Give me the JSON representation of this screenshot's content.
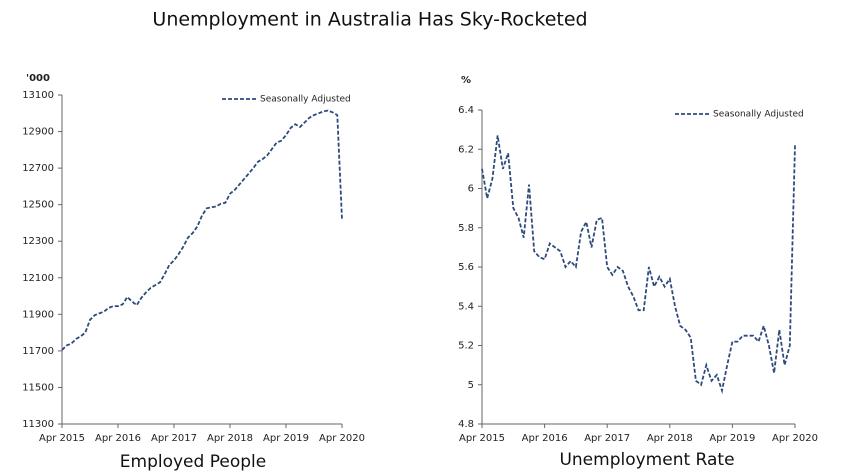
{
  "title": "Unemployment in Australia Has Sky-Rocketed",
  "chart_data": [
    {
      "type": "line",
      "title": "Employed People",
      "ylabel": "'000",
      "x": [
        "2015-04",
        "2015-05",
        "2015-06",
        "2015-07",
        "2015-08",
        "2015-09",
        "2015-10",
        "2015-11",
        "2015-12",
        "2016-01",
        "2016-02",
        "2016-03",
        "2016-04",
        "2016-05",
        "2016-06",
        "2016-07",
        "2016-08",
        "2016-09",
        "2016-10",
        "2016-11",
        "2016-12",
        "2017-01",
        "2017-02",
        "2017-03",
        "2017-04",
        "2017-05",
        "2017-06",
        "2017-07",
        "2017-08",
        "2017-09",
        "2017-10",
        "2017-11",
        "2017-12",
        "2018-01",
        "2018-02",
        "2018-03",
        "2018-04",
        "2018-05",
        "2018-06",
        "2018-07",
        "2018-08",
        "2018-09",
        "2018-10",
        "2018-11",
        "2018-12",
        "2019-01",
        "2019-02",
        "2019-03",
        "2019-04",
        "2019-05",
        "2019-06",
        "2019-07",
        "2019-08",
        "2019-09",
        "2019-10",
        "2019-11",
        "2019-12",
        "2020-01",
        "2020-02",
        "2020-03",
        "2020-04"
      ],
      "series": [
        {
          "name": "Seasonally Adjusted",
          "color": "#2e4a7d",
          "line_style": "dashed",
          "values": [
            11705,
            11730,
            11740,
            11765,
            11780,
            11800,
            11870,
            11895,
            11905,
            11915,
            11935,
            11945,
            11945,
            11955,
            11995,
            11970,
            11950,
            11990,
            12020,
            12045,
            12060,
            12075,
            12120,
            12170,
            12195,
            12230,
            12270,
            12320,
            12345,
            12380,
            12440,
            12480,
            12485,
            12490,
            12505,
            12510,
            12560,
            12580,
            12610,
            12640,
            12670,
            12700,
            12735,
            12750,
            12770,
            12805,
            12840,
            12850,
            12880,
            12920,
            12940,
            12925,
            12950,
            12975,
            12990,
            13000,
            13010,
            13015,
            13005,
            12990,
            12420
          ]
        }
      ],
      "xlim": [
        "2015-04",
        "2020-04"
      ],
      "xticks": [
        {
          "value": "2015-04",
          "label": "Apr 2015"
        },
        {
          "value": "2016-04",
          "label": "Apr 2016"
        },
        {
          "value": "2017-04",
          "label": "Apr 2017"
        },
        {
          "value": "2018-04",
          "label": "Apr 2018"
        },
        {
          "value": "2019-04",
          "label": "Apr 2019"
        },
        {
          "value": "2020-04",
          "label": "Apr 2020"
        }
      ],
      "ylim": [
        11300,
        13100
      ],
      "yticks": [
        11300,
        11500,
        11700,
        11900,
        12100,
        12300,
        12500,
        12700,
        12900,
        13100
      ],
      "grid": false,
      "legend": "top-right"
    },
    {
      "type": "line",
      "title": "Unemployment Rate",
      "ylabel": "%",
      "x": [
        "2015-04",
        "2015-05",
        "2015-06",
        "2015-07",
        "2015-08",
        "2015-09",
        "2015-10",
        "2015-11",
        "2015-12",
        "2016-01",
        "2016-02",
        "2016-03",
        "2016-04",
        "2016-05",
        "2016-06",
        "2016-07",
        "2016-08",
        "2016-09",
        "2016-10",
        "2016-11",
        "2016-12",
        "2017-01",
        "2017-02",
        "2017-03",
        "2017-04",
        "2017-05",
        "2017-06",
        "2017-07",
        "2017-08",
        "2017-09",
        "2017-10",
        "2017-11",
        "2017-12",
        "2018-01",
        "2018-02",
        "2018-03",
        "2018-04",
        "2018-05",
        "2018-06",
        "2018-07",
        "2018-08",
        "2018-09",
        "2018-10",
        "2018-11",
        "2018-12",
        "2019-01",
        "2019-02",
        "2019-03",
        "2019-04",
        "2019-05",
        "2019-06",
        "2019-07",
        "2019-08",
        "2019-09",
        "2019-10",
        "2019-11",
        "2019-12",
        "2020-01",
        "2020-02",
        "2020-03",
        "2020-04"
      ],
      "series": [
        {
          "name": "Seasonally Adjusted",
          "color": "#2e4a7d",
          "line_style": "dashed",
          "values": [
            6.1,
            5.95,
            6.05,
            6.27,
            6.1,
            6.18,
            5.9,
            5.85,
            5.75,
            6.02,
            5.68,
            5.65,
            5.64,
            5.72,
            5.7,
            5.68,
            5.6,
            5.63,
            5.6,
            5.78,
            5.83,
            5.7,
            5.84,
            5.85,
            5.6,
            5.56,
            5.6,
            5.58,
            5.5,
            5.45,
            5.38,
            5.38,
            5.6,
            5.5,
            5.55,
            5.5,
            5.54,
            5.4,
            5.3,
            5.28,
            5.24,
            5.02,
            5.0,
            5.1,
            5.02,
            5.05,
            4.97,
            5.1,
            5.22,
            5.22,
            5.25,
            5.25,
            5.25,
            5.22,
            5.3,
            5.2,
            5.06,
            5.28,
            5.1,
            5.2,
            6.22
          ]
        }
      ],
      "xlim": [
        "2015-04",
        "2020-04"
      ],
      "xticks": [
        {
          "value": "2015-04",
          "label": "Apr 2015"
        },
        {
          "value": "2016-04",
          "label": "Apr 2016"
        },
        {
          "value": "2017-04",
          "label": "Apr 2017"
        },
        {
          "value": "2018-04",
          "label": "Apr 2018"
        },
        {
          "value": "2019-04",
          "label": "Apr 2019"
        },
        {
          "value": "2020-04",
          "label": "Apr 2020"
        }
      ],
      "ylim": [
        4.8,
        6.4
      ],
      "yticks": [
        4.8,
        5.0,
        5.2,
        5.4,
        5.6,
        5.8,
        6.0,
        6.2,
        6.4
      ],
      "grid": false,
      "legend": "top-right"
    }
  ]
}
